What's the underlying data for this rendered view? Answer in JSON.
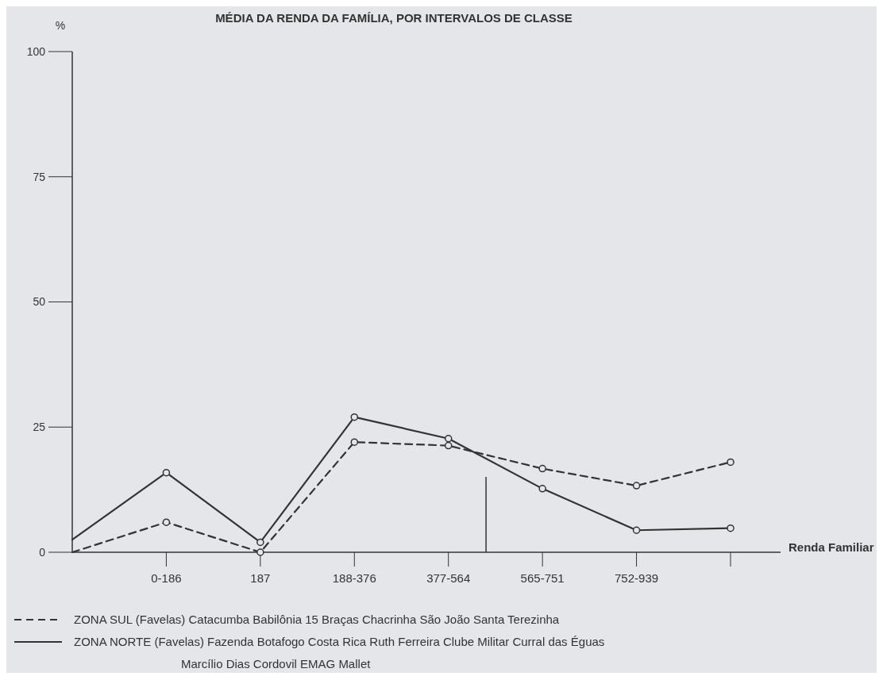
{
  "chart_data": {
    "type": "line",
    "title": "MÉDIA DA RENDA DA FAMÍLIA, POR INTERVALOS DE CLASSE",
    "xlabel": "Renda Familiar",
    "ylabel": "%",
    "categories": [
      null,
      "0-186",
      "187",
      "188-376",
      "377-564",
      "565-751",
      "752-939",
      null
    ],
    "series": [
      {
        "name": "ZONA SUL (Favelas) Catacumba Babilônia 15 Braças Chacrinha São João Santa Terezinha",
        "color": "#333333",
        "line_style": "dashed",
        "values": [
          0,
          6,
          0,
          22,
          21.3,
          16.7,
          13.3,
          18
        ]
      },
      {
        "name": "ZONA NORTE (Favelas) Fazenda Botafogo Costa Rica Ruth Ferreira Clube Militar Curral das Éguas Marcílio Dias Cordovil EMAG Mallet",
        "color": "#333333",
        "line_style": "solid",
        "values": [
          2.5,
          15.9,
          2,
          27,
          22.7,
          12.7,
          4.4,
          4.8
        ]
      }
    ],
    "ylim": [
      0,
      100
    ],
    "yticks": [
      0,
      25,
      50,
      75,
      100
    ],
    "marker": "circle",
    "grid": false,
    "legend": "bottom"
  }
}
